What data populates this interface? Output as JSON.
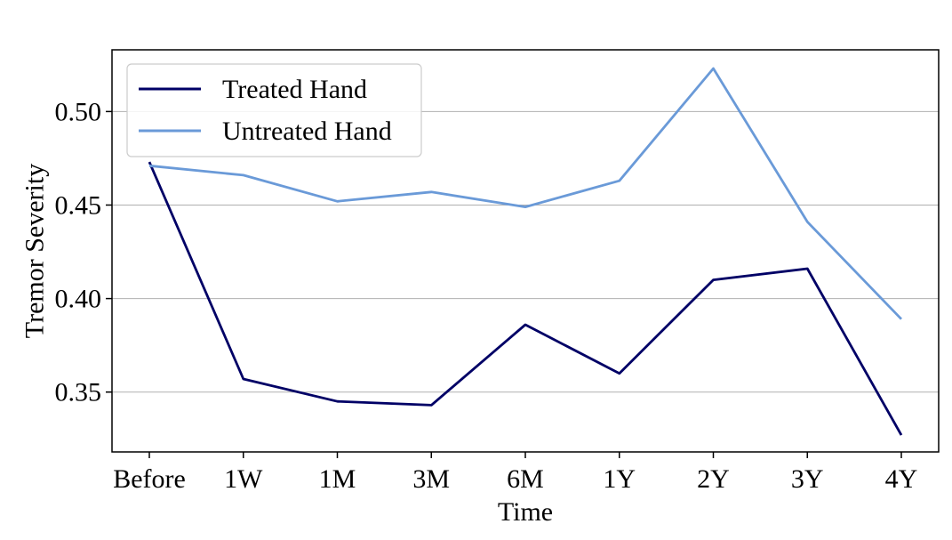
{
  "chart_data": {
    "type": "line",
    "title": "",
    "xlabel": "Time",
    "ylabel": "Tremor Severity",
    "categories": [
      "Before",
      "1W",
      "1M",
      "3M",
      "6M",
      "1Y",
      "2Y",
      "3Y",
      "4Y"
    ],
    "series": [
      {
        "name": "Treated Hand",
        "color": "#000066",
        "values": [
          0.473,
          0.357,
          0.345,
          0.343,
          0.386,
          0.36,
          0.41,
          0.416,
          0.327
        ]
      },
      {
        "name": "Untreated Hand",
        "color": "#6a9ad8",
        "values": [
          0.471,
          0.466,
          0.452,
          0.457,
          0.449,
          0.463,
          0.523,
          0.441,
          0.389
        ]
      }
    ],
    "ylim": [
      0.318,
      0.533
    ],
    "yticks": [
      0.35,
      0.4,
      0.45,
      0.5
    ],
    "ytick_labels": [
      "0.35",
      "0.40",
      "0.45",
      "0.50"
    ],
    "grid": "horizontal",
    "grid_color": "#b0b0b0",
    "legend_position": "upper left"
  }
}
